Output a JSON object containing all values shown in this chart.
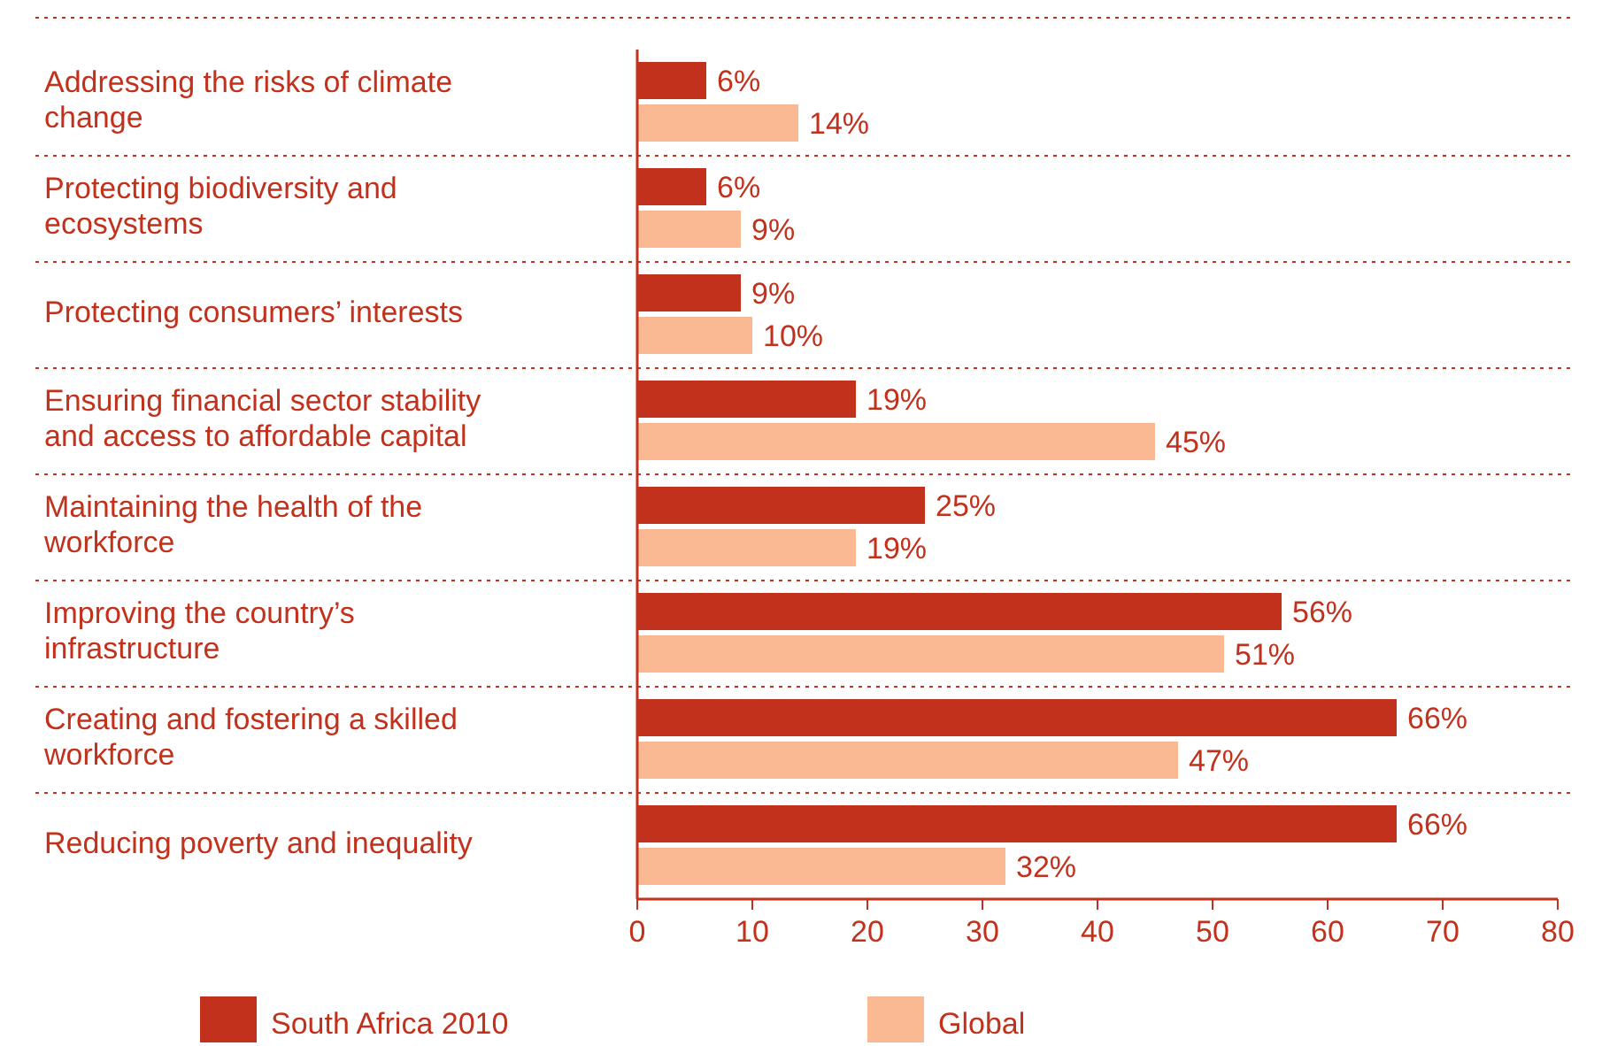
{
  "chart_data": {
    "type": "bar",
    "orientation": "horizontal",
    "categories": [
      "Addressing the risks of climate change",
      "Protecting biodiversity and ecosystems",
      "Protecting consumers’ interests",
      "Ensuring financial sector stability and access to affordable capital",
      "Maintaining the health of the workforce",
      "Improving the country’s infrastructure",
      "Creating and fostering a skilled workforce",
      "Reducing poverty and inequality"
    ],
    "series": [
      {
        "name": "South Africa 2010",
        "color": "#c1311c",
        "values": [
          6,
          6,
          9,
          19,
          25,
          56,
          66,
          66
        ],
        "value_labels": [
          "6%",
          "6%",
          "9%",
          "19%",
          "25%",
          "56%",
          "66%",
          "66%"
        ]
      },
      {
        "name": "Global",
        "color": "#fbb993",
        "values": [
          14,
          9,
          10,
          45,
          19,
          51,
          47,
          32
        ],
        "value_labels": [
          "14%",
          "9%",
          "10%",
          "45%",
          "19%",
          "51%",
          "47%",
          "32%"
        ]
      }
    ],
    "xlim": [
      0,
      80
    ],
    "xticks": [
      0,
      10,
      20,
      30,
      40,
      50,
      60,
      70,
      80
    ],
    "grid": false,
    "legend": "bottom"
  }
}
